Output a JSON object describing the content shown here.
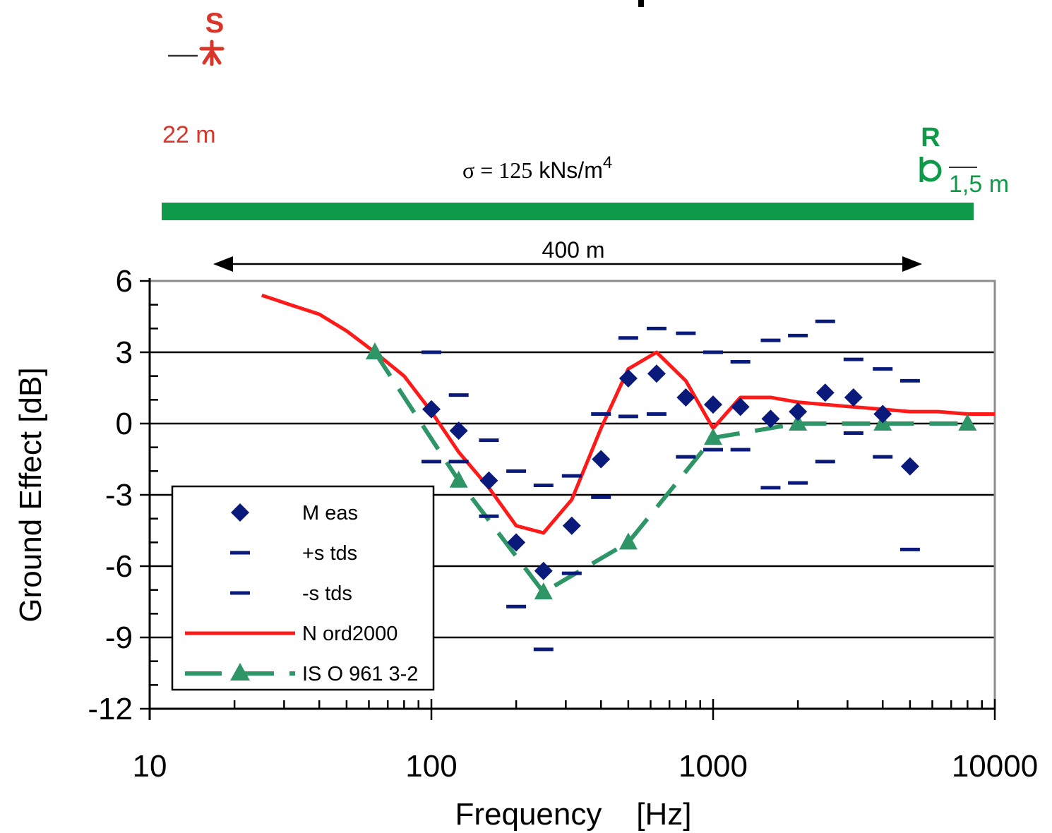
{
  "diagram": {
    "source_label": "S",
    "source_height": "22 m",
    "receiver_label": "R",
    "receiver_height": "1,5 m",
    "sigma_symbol": "σ",
    "sigma_eq": " = ",
    "sigma_value": "125",
    "sigma_unit": " kNs/m",
    "sigma_exp": "4",
    "distance": "400 m",
    "source_color": "#d9362b",
    "receiver_color": "#0e9a48",
    "ground_color": "#0e9a48"
  },
  "chart_data": {
    "type": "line",
    "xscale": "log",
    "xlim": [
      10,
      10000
    ],
    "ylim": [
      -12,
      6
    ],
    "xticks": [
      10,
      100,
      1000,
      10000
    ],
    "xtick_labels": [
      "10",
      "100",
      "1000",
      "10000"
    ],
    "yticks": [
      6,
      3,
      0,
      -3,
      -6,
      -9,
      -12
    ],
    "ytick_labels": [
      "6",
      "3",
      "0",
      "-3",
      "-6",
      "-9",
      "-12"
    ],
    "xlabel": "Frequency    [Hz]",
    "ylabel": "Ground Effect   [dB]",
    "grid": "horizontal",
    "legend_position": "bottom-left",
    "series": [
      {
        "name": "Meas",
        "style": "diamond-markers",
        "color": "#0a1a7a",
        "x": [
          100,
          125,
          160,
          200,
          250,
          315,
          400,
          500,
          630,
          800,
          1000,
          1250,
          1600,
          2000,
          2500,
          3150,
          4000,
          5000
        ],
        "y": [
          0.6,
          -0.3,
          -2.4,
          -5.0,
          -6.2,
          -4.3,
          -1.5,
          1.9,
          2.1,
          1.1,
          0.8,
          0.7,
          0.2,
          0.5,
          1.3,
          1.1,
          0.4,
          -1.8
        ]
      },
      {
        "name": "+stds",
        "style": "dash-markers",
        "color": "#0a1a7a",
        "x": [
          100,
          125,
          160,
          200,
          250,
          315,
          400,
          500,
          630,
          800,
          1000,
          1250,
          1600,
          2000,
          2500,
          3150,
          4000,
          5000
        ],
        "y": [
          3.0,
          1.2,
          -0.7,
          -2.0,
          -2.6,
          -2.2,
          0.4,
          3.6,
          4.0,
          3.8,
          3.0,
          2.6,
          3.5,
          3.7,
          4.3,
          2.7,
          2.3,
          1.8
        ]
      },
      {
        "name": "-stds",
        "style": "dash-markers",
        "color": "#0a1a7a",
        "x": [
          100,
          125,
          160,
          200,
          250,
          315,
          400,
          500,
          630,
          800,
          1000,
          1250,
          1600,
          2000,
          2500,
          3150,
          4000,
          5000
        ],
        "y": [
          -1.6,
          -1.6,
          -3.9,
          -7.7,
          -9.5,
          -6.3,
          -3.1,
          0.3,
          0.4,
          -1.4,
          -1.1,
          -1.1,
          -2.7,
          -2.5,
          -1.6,
          -0.4,
          -1.4,
          -5.3
        ]
      },
      {
        "name": "Nord2000",
        "style": "solid-line",
        "color": "#ff1a1a",
        "x": [
          25,
          31.5,
          40,
          50,
          63,
          80,
          100,
          125,
          160,
          200,
          250,
          315,
          400,
          500,
          630,
          800,
          1000,
          1250,
          1600,
          2000,
          2500,
          3150,
          4000,
          5000,
          6300,
          8000,
          10000
        ],
        "y": [
          5.4,
          5.0,
          4.6,
          3.9,
          3.0,
          2.0,
          0.5,
          -1.2,
          -2.7,
          -4.3,
          -4.6,
          -3.2,
          -0.2,
          2.3,
          3.0,
          1.8,
          -0.2,
          1.1,
          1.1,
          0.9,
          0.8,
          0.7,
          0.6,
          0.5,
          0.5,
          0.4,
          0.4
        ]
      },
      {
        "name": "ISO 9613-2",
        "style": "dashed-line-triangles",
        "color": "#2e9566",
        "x": [
          63,
          125,
          250,
          500,
          1000,
          2000,
          4000,
          8000
        ],
        "y": [
          3.0,
          -2.4,
          -7.1,
          -5.0,
          -0.6,
          0.0,
          0.0,
          0.0
        ]
      }
    ]
  },
  "legend": {
    "items": [
      "M eas",
      "+s tds",
      "-s tds",
      "N ord2000",
      "IS O  961 3-2"
    ]
  }
}
